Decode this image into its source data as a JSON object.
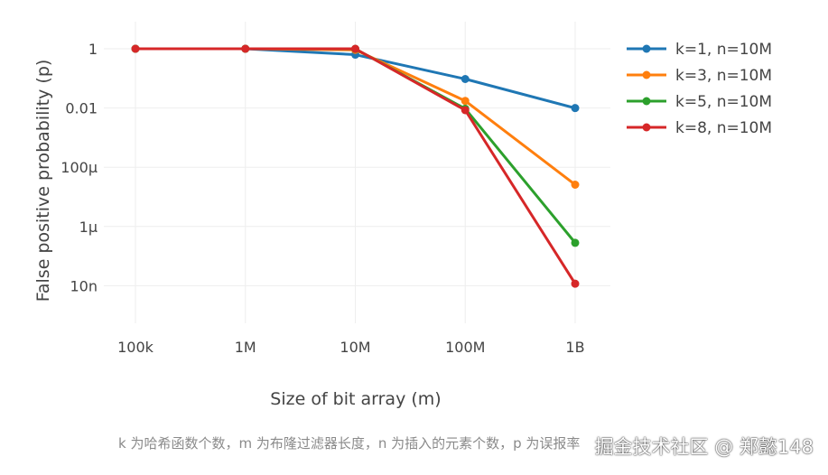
{
  "chart_data": {
    "type": "line",
    "title": "",
    "xlabel": "Size of bit array (m)",
    "ylabel": "False positive probability (p)",
    "x_scale": "log",
    "y_scale": "log",
    "categories": [
      "100k",
      "1M",
      "10M",
      "100M",
      "1B"
    ],
    "x": [
      100000,
      1000000,
      10000000,
      100000000,
      1000000000
    ],
    "y_ticks": [
      {
        "value": 1,
        "label": "1"
      },
      {
        "value": 0.01,
        "label": "0.01"
      },
      {
        "value": 0.0001,
        "label": "100μ"
      },
      {
        "value": 1e-06,
        "label": "1μ"
      },
      {
        "value": 1e-08,
        "label": "10n"
      }
    ],
    "ylim": [
      1e-09,
      3
    ],
    "grid": true,
    "legend_position": "right",
    "series": [
      {
        "name": "k=1, n=10M",
        "color": "#1f77b4",
        "values": [
          1.0,
          1.0,
          0.632,
          0.0952,
          0.00995
        ]
      },
      {
        "name": "k=3, n=10M",
        "color": "#ff7f0e",
        "values": [
          1.0,
          1.0,
          0.92,
          0.0174,
          2.58e-05
        ]
      },
      {
        "name": "k=5, n=10M",
        "color": "#2ca02c",
        "values": [
          1.0,
          1.0,
          0.99,
          0.00943,
          2.81e-07
        ]
      },
      {
        "name": "k=8, n=10M",
        "color": "#d62728",
        "values": [
          1.0,
          1.0,
          1.0,
          0.00846,
          1.17e-08
        ]
      }
    ]
  },
  "caption": "k 为哈希函数个数，m 为布隆过滤器长度，n 为插入的元素个数，p 为误报率",
  "watermark": "掘金技术社区 @ 郑懿148"
}
